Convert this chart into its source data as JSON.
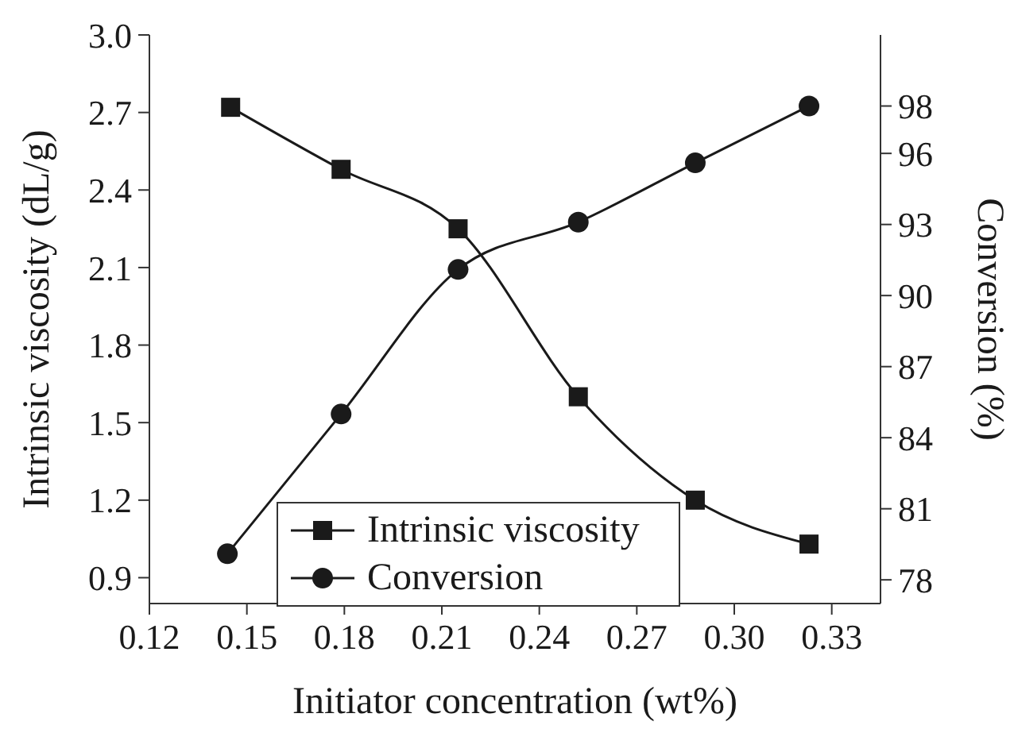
{
  "chart_data": {
    "type": "line",
    "xlabel": "Initiator concentration (wt%)",
    "ylabel": "Intrinsic viscosity (dL/g)",
    "y2label": "Conversion (%)",
    "series": [
      {
        "name": "Intrinsic viscosity",
        "color": "#1a1a1a",
        "marker": "square",
        "x": [
          0.145,
          0.179,
          0.215,
          0.252,
          0.288,
          0.323
        ],
        "values": [
          2.72,
          2.48,
          2.25,
          1.6,
          1.2,
          1.03
        ]
      },
      {
        "name": "Conversion",
        "color": "#1a1a1a",
        "marker": "circle",
        "axis": "y2",
        "x": [
          0.144,
          0.179,
          0.215,
          0.252,
          0.288,
          0.323
        ],
        "values": [
          79.1,
          85.0,
          91.1,
          93.1,
          95.6,
          98.0
        ]
      }
    ],
    "xlim": [
      0.12,
      0.345
    ],
    "xticks": [
      0.12,
      0.15,
      0.18,
      0.21,
      0.24,
      0.27,
      {
        "value": 0.3,
        "label": "0.30"
      },
      0.33
    ],
    "ylim": [
      0.8,
      3.0
    ],
    "yticks": [
      0.9,
      1.2,
      1.5,
      1.8,
      2.1,
      2.4,
      2.7,
      {
        "value": 3,
        "label": "3.0"
      }
    ],
    "y2lim": [
      77,
      101
    ],
    "y2ticks": [
      78,
      81,
      84,
      87,
      90,
      93,
      96,
      98
    ],
    "legend": "bottom",
    "grid": false,
    "line_style": "solid"
  }
}
